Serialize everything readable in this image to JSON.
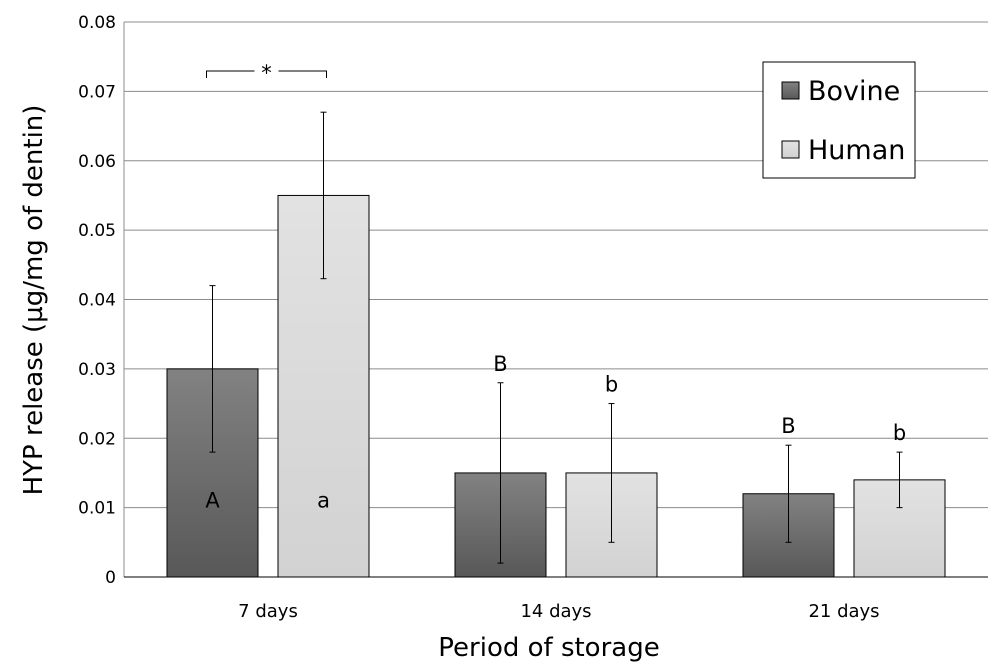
{
  "chart_data": {
    "type": "bar",
    "title": "",
    "xlabel": "Period of storage",
    "ylabel": "HYP release (µg/mg of dentin)",
    "categories": [
      "7 days",
      "14 days",
      "21 days"
    ],
    "ylim": [
      0,
      0.08
    ],
    "yticks": [
      "0",
      "0.01",
      "0.02",
      "0.03",
      "0.04",
      "0.05",
      "0.06",
      "0.07",
      "0.08"
    ],
    "grid": true,
    "legend_position": "top-right",
    "series": [
      {
        "name": "Bovine",
        "color": "#6e6e6e",
        "values": [
          0.03,
          0.015,
          0.012
        ],
        "error": [
          0.012,
          0.013,
          0.007
        ],
        "letters": [
          "A",
          "B",
          "B"
        ]
      },
      {
        "name": "Human",
        "color": "#d9d9d9",
        "values": [
          0.055,
          0.015,
          0.014
        ],
        "error": [
          0.012,
          0.01,
          0.004
        ],
        "letters": [
          "a",
          "b",
          "b"
        ]
      }
    ],
    "annotations": [
      {
        "text": "*",
        "category": "7 days",
        "type": "significance-bracket"
      }
    ]
  }
}
